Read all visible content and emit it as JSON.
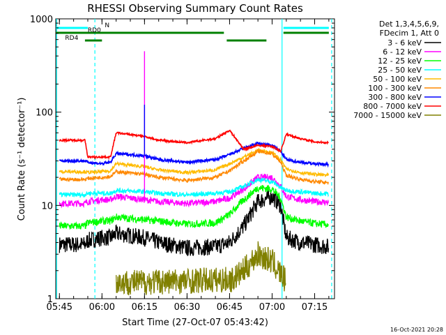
{
  "chart_data": {
    "type": "line",
    "title": "RHESSI Observing Summary Count Rates",
    "xlabel": "Start Time (27-Oct-07 05:43:42)",
    "ylabel": "Count Rate (s⁻¹ detector⁻¹)",
    "ylog": true,
    "ylim": [
      1,
      1000
    ],
    "xlim": [
      "05:43:42",
      "07:22:00"
    ],
    "x_ticks": [
      "05:45",
      "06:00",
      "06:15",
      "06:30",
      "06:45",
      "07:00",
      "07:15"
    ],
    "y_ticks": [
      "1",
      "10",
      "100",
      "1000"
    ],
    "legend_header": [
      "Det 1,3,4,5,6,9,",
      "FDecim 1, Att 0"
    ],
    "legend_position": "right",
    "series": [
      {
        "name": "3 - 6 keV",
        "color": "#000000",
        "times": [
          "05:45",
          "05:54",
          "05:55",
          "06:00",
          "06:03",
          "06:05",
          "06:15",
          "06:20",
          "06:30",
          "06:40",
          "06:45",
          "06:50",
          "06:55",
          "07:00",
          "07:03",
          "07:05",
          "07:10",
          "07:15",
          "07:20"
        ],
        "values": [
          3.8,
          3.8,
          4.2,
          4.5,
          4.5,
          5.0,
          4.5,
          4.0,
          3.5,
          3.6,
          4.0,
          6.0,
          11.0,
          12.5,
          10.0,
          4.5,
          4.0,
          3.8,
          3.6
        ]
      },
      {
        "name": "6 - 12 keV",
        "color": "#ff00ff",
        "times": [
          "05:45",
          "05:54",
          "05:55",
          "06:00",
          "06:03",
          "06:05",
          "06:15",
          "06:20",
          "06:30",
          "06:40",
          "06:45",
          "06:50",
          "06:55",
          "07:00",
          "07:03",
          "07:05",
          "07:10",
          "07:15",
          "07:20"
        ],
        "values": [
          10.5,
          10.5,
          11.0,
          11.5,
          11.5,
          12.5,
          11.5,
          11.0,
          10.5,
          11.0,
          12.0,
          15.0,
          20.0,
          20.0,
          16.0,
          12.5,
          11.5,
          11.0,
          10.8
        ]
      },
      {
        "name": "12 - 25 keV",
        "color": "#00ff00",
        "times": [
          "05:45",
          "05:54",
          "05:55",
          "06:00",
          "06:03",
          "06:05",
          "06:15",
          "06:20",
          "06:30",
          "06:40",
          "06:45",
          "06:50",
          "06:55",
          "07:00",
          "07:03",
          "07:05",
          "07:10",
          "07:15",
          "07:20"
        ],
        "values": [
          6.0,
          6.0,
          6.5,
          6.8,
          6.8,
          7.5,
          7.0,
          6.8,
          6.3,
          6.5,
          8.0,
          11.5,
          15.5,
          15.0,
          12.0,
          7.5,
          6.8,
          6.4,
          6.2
        ]
      },
      {
        "name": "25 - 50 keV",
        "color": "#00ffff",
        "times": [
          "05:45",
          "05:54",
          "05:55",
          "06:00",
          "06:03",
          "06:05",
          "06:15",
          "06:20",
          "06:30",
          "06:40",
          "06:45",
          "06:50",
          "06:55",
          "07:00",
          "07:03",
          "07:05",
          "07:10",
          "07:15",
          "07:20"
        ],
        "values": [
          13.0,
          13.0,
          13.5,
          13.5,
          13.5,
          14.5,
          14.0,
          13.5,
          13.0,
          13.5,
          14.0,
          16.0,
          19.0,
          18.0,
          15.5,
          14.5,
          14.0,
          13.5,
          13.3
        ]
      },
      {
        "name": "50 - 100 keV",
        "color": "#ffbb00",
        "times": [
          "05:45",
          "05:54",
          "05:55",
          "06:00",
          "06:03",
          "06:05",
          "06:15",
          "06:20",
          "06:30",
          "06:40",
          "06:45",
          "06:50",
          "06:55",
          "07:00",
          "07:03",
          "07:05",
          "07:10",
          "07:15",
          "07:20"
        ],
        "values": [
          23.0,
          23.0,
          22.5,
          23.0,
          23.5,
          28.0,
          26.0,
          24.0,
          22.5,
          24.0,
          28.0,
          33.0,
          39.0,
          37.0,
          31.0,
          24.5,
          22.5,
          21.5,
          21.0
        ]
      },
      {
        "name": "100 - 300 keV",
        "color": "#ff8800",
        "times": [
          "05:45",
          "05:54",
          "05:55",
          "06:00",
          "06:03",
          "06:05",
          "06:15",
          "06:20",
          "06:30",
          "06:40",
          "06:45",
          "06:50",
          "06:55",
          "07:00",
          "07:03",
          "07:05",
          "07:10",
          "07:15",
          "07:20"
        ],
        "values": [
          19.0,
          19.0,
          19.5,
          20.0,
          20.5,
          23.0,
          21.5,
          20.0,
          18.5,
          20.0,
          23.5,
          30.0,
          38.0,
          36.0,
          29.0,
          21.0,
          19.0,
          18.0,
          17.5
        ]
      },
      {
        "name": "300 - 800 keV",
        "color": "#0000ff",
        "times": [
          "05:45",
          "05:54",
          "05:55",
          "06:00",
          "06:03",
          "06:05",
          "06:15",
          "06:20",
          "06:30",
          "06:40",
          "06:45",
          "06:50",
          "06:55",
          "07:00",
          "07:03",
          "07:05",
          "07:10",
          "07:15",
          "07:20"
        ],
        "values": [
          30.0,
          30.0,
          29.0,
          28.0,
          29.0,
          36.0,
          34.0,
          31.0,
          29.0,
          31.0,
          35.0,
          41.0,
          46.0,
          44.0,
          38.0,
          31.0,
          29.0,
          28.0,
          27.5
        ]
      },
      {
        "name": "800 - 7000 keV",
        "color": "#ff0000",
        "times": [
          "05:45",
          "05:54",
          "05:55",
          "06:00",
          "06:03",
          "06:05",
          "06:15",
          "06:20",
          "06:30",
          "06:40",
          "06:45",
          "06:50",
          "06:55",
          "07:00",
          "07:03",
          "07:05",
          "07:10",
          "07:15",
          "07:20"
        ],
        "values": [
          50.0,
          50.0,
          33.0,
          33.0,
          33.0,
          60.0,
          55.0,
          50.0,
          47.0,
          52.0,
          64.0,
          40.0,
          44.0,
          43.0,
          38.0,
          58.0,
          52.0,
          48.0,
          47.0
        ]
      },
      {
        "name": "7000 - 15000 keV",
        "color": "#808000",
        "times": [
          "06:05",
          "06:12",
          "06:46",
          "06:50",
          "06:55",
          "07:00",
          "07:05"
        ],
        "values": [
          1.5,
          1.5,
          1.6,
          2.0,
          3.0,
          2.5,
          1.5
        ]
      }
    ],
    "spikes": [
      {
        "series": "6 - 12 keV",
        "time": "06:15",
        "value": 450
      },
      {
        "series": "300 - 800 keV",
        "time": "06:15",
        "value": 120
      }
    ],
    "state_bars": [
      {
        "label": "N",
        "color": "#00ffff",
        "segments": [
          [
            "05:43:42",
            "05:55"
          ],
          [
            "07:04",
            "07:20"
          ]
        ]
      },
      {
        "label": "RD0",
        "color": "#008000",
        "segments": [
          [
            "05:43:42",
            "06:43"
          ],
          [
            "07:04",
            "07:20"
          ]
        ]
      },
      {
        "label": "RD4",
        "color": "#008000",
        "segments": [
          [
            "05:54",
            "06:00"
          ],
          [
            "06:44",
            "06:58"
          ]
        ]
      }
    ],
    "vlines_cyan": [
      "05:44:00",
      "05:57:30",
      "07:03:30",
      "07:21:00"
    ],
    "vlines_cyan_dashed": [
      "05:57:30",
      "07:21:00"
    ],
    "footer": "16-Oct-2021 20:28"
  }
}
